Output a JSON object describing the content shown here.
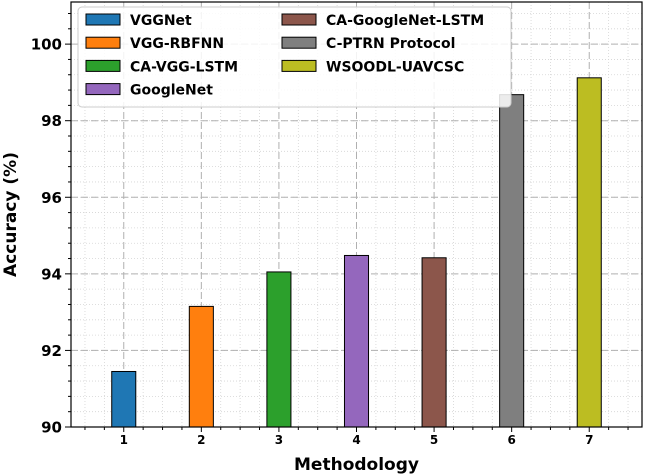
{
  "chart_data": {
    "type": "bar",
    "xlabel": "Methodology",
    "ylabel": "Accuracy (%)",
    "ylim": [
      90,
      101.1
    ],
    "yticks": [
      90,
      92,
      94,
      96,
      98,
      100
    ],
    "grid": true,
    "legend_position": "upper-left",
    "categories": [
      "1",
      "2",
      "3",
      "4",
      "5",
      "6",
      "7"
    ],
    "series": [
      {
        "name": "VGGNet",
        "category": "1",
        "value": 91.45,
        "color": "#1f77b4"
      },
      {
        "name": "VGG-RBFNN",
        "category": "2",
        "value": 93.15,
        "color": "#ff7f0e"
      },
      {
        "name": "CA-VGG-LSTM",
        "category": "3",
        "value": 94.05,
        "color": "#2ca02c"
      },
      {
        "name": "GoogleNet",
        "category": "4",
        "value": 94.48,
        "color": "#9467bd"
      },
      {
        "name": "CA-GoogleNet-LSTM",
        "category": "5",
        "value": 94.42,
        "color": "#8c564b"
      },
      {
        "name": "C-PTRN Protocol",
        "category": "6",
        "value": 98.68,
        "color": "#7f7f7f"
      },
      {
        "name": "WSOODL-UAVCSC",
        "category": "7",
        "value": 99.12,
        "color": "#bcbd22"
      }
    ]
  }
}
